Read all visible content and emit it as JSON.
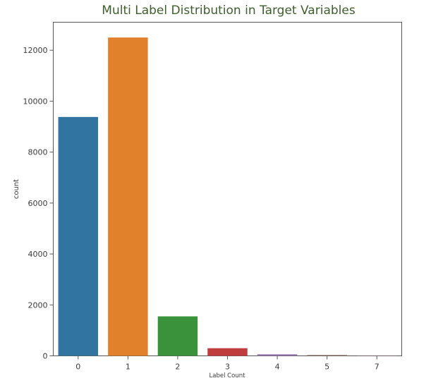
{
  "chart_data": {
    "type": "bar",
    "title": "Multi Label Distribution in Target Variables",
    "xlabel": "Label Count",
    "ylabel": "count",
    "categories": [
      "0",
      "1",
      "2",
      "3",
      "4",
      "5",
      "7"
    ],
    "values": [
      9380,
      12500,
      1550,
      300,
      60,
      30,
      5
    ],
    "colors": [
      "#3274a1",
      "#e1812c",
      "#3a923a",
      "#c03d3e",
      "#9372b2",
      "#845b53",
      "#d684bd"
    ],
    "yticks": [
      0,
      2000,
      4000,
      6000,
      8000,
      10000,
      12000
    ],
    "ylim": [
      0,
      13100
    ],
    "grid": false,
    "legend": "none"
  }
}
